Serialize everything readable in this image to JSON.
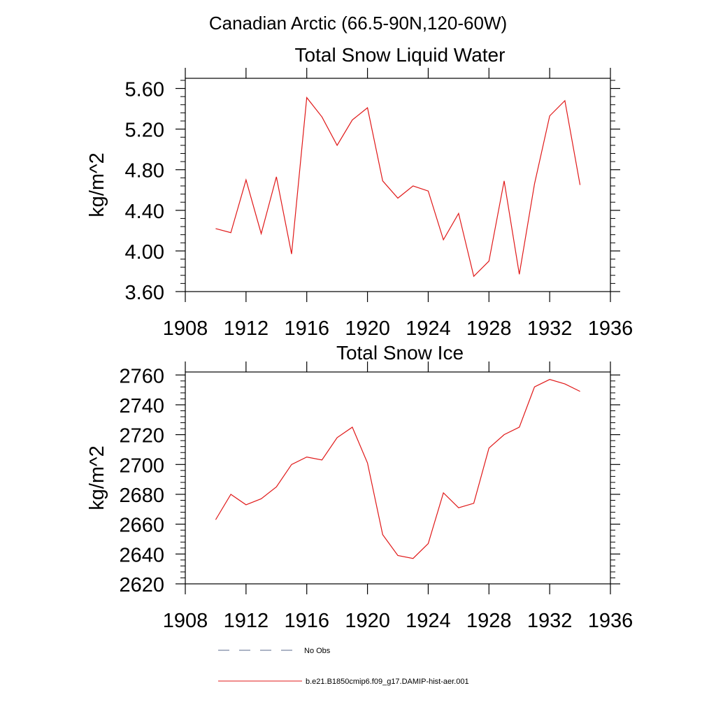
{
  "figure": {
    "suptitle": "Canadian Arctic (66.5-90N,120-60W)"
  },
  "legend": {
    "placement": "bottom",
    "entries": [
      {
        "label": "No Obs",
        "style": "dashed",
        "color": "#5a6a8c"
      },
      {
        "label": "b.e21.B1850cmip6.f09_g17.DAMIP-hist-aer.001",
        "style": "solid",
        "color": "#e01818"
      }
    ]
  },
  "chart_data": [
    {
      "type": "line",
      "title": "Total Snow Liquid Water",
      "xlabel": "",
      "ylabel": "kg/m^2",
      "xlim": [
        1908,
        1936
      ],
      "ylim": [
        3.6,
        5.7
      ],
      "xticks": [
        1908,
        1912,
        1916,
        1920,
        1924,
        1928,
        1932,
        1936
      ],
      "xtick_labels": [
        "1908",
        "1912",
        "1916",
        "1920",
        "1924",
        "1928",
        "1932",
        "1936"
      ],
      "yticks": [
        3.6,
        4.0,
        4.4,
        4.8,
        5.2,
        5.6
      ],
      "ytick_labels": [
        "3.60",
        "4.00",
        "4.40",
        "4.80",
        "5.20",
        "5.60"
      ],
      "grid": false,
      "series": [
        {
          "name": "b.e21.B1850cmip6.f09_g17.DAMIP-hist-aer.001",
          "color": "#e01818",
          "x": [
            1910,
            1911,
            1912,
            1913,
            1914,
            1915,
            1916,
            1917,
            1918,
            1919,
            1920,
            1921,
            1922,
            1923,
            1924,
            1925,
            1926,
            1927,
            1928,
            1929,
            1930,
            1931,
            1932,
            1933,
            1934
          ],
          "y": [
            4.22,
            4.18,
            4.7,
            4.17,
            4.73,
            3.97,
            5.51,
            5.32,
            5.04,
            5.29,
            5.41,
            4.69,
            4.52,
            4.64,
            4.59,
            4.11,
            4.37,
            3.75,
            3.9,
            4.69,
            3.77,
            4.66,
            5.33,
            5.48,
            4.65
          ]
        }
      ]
    },
    {
      "type": "line",
      "title": "Total Snow Ice",
      "xlabel": "",
      "ylabel": "kg/m^2",
      "xlim": [
        1908,
        1936
      ],
      "ylim": [
        2620,
        2762
      ],
      "xticks": [
        1908,
        1912,
        1916,
        1920,
        1924,
        1928,
        1932,
        1936
      ],
      "xtick_labels": [
        "1908",
        "1912",
        "1916",
        "1920",
        "1924",
        "1928",
        "1932",
        "1936"
      ],
      "yticks": [
        2620,
        2640,
        2660,
        2680,
        2700,
        2720,
        2740,
        2760
      ],
      "ytick_labels": [
        "2620",
        "2640",
        "2660",
        "2680",
        "2700",
        "2720",
        "2740",
        "2760"
      ],
      "grid": false,
      "series": [
        {
          "name": "b.e21.B1850cmip6.f09_g17.DAMIP-hist-aer.001",
          "color": "#e01818",
          "x": [
            1910,
            1911,
            1912,
            1913,
            1914,
            1915,
            1916,
            1917,
            1918,
            1919,
            1920,
            1921,
            1922,
            1923,
            1924,
            1925,
            1926,
            1927,
            1928,
            1929,
            1930,
            1931,
            1932,
            1933,
            1934
          ],
          "y": [
            2663,
            2680,
            2673,
            2677,
            2685,
            2700,
            2705,
            2703,
            2718,
            2725,
            2701,
            2653,
            2639,
            2637,
            2647,
            2681,
            2671,
            2674,
            2711,
            2720,
            2725,
            2752,
            2757,
            2754,
            2749
          ]
        }
      ]
    }
  ]
}
